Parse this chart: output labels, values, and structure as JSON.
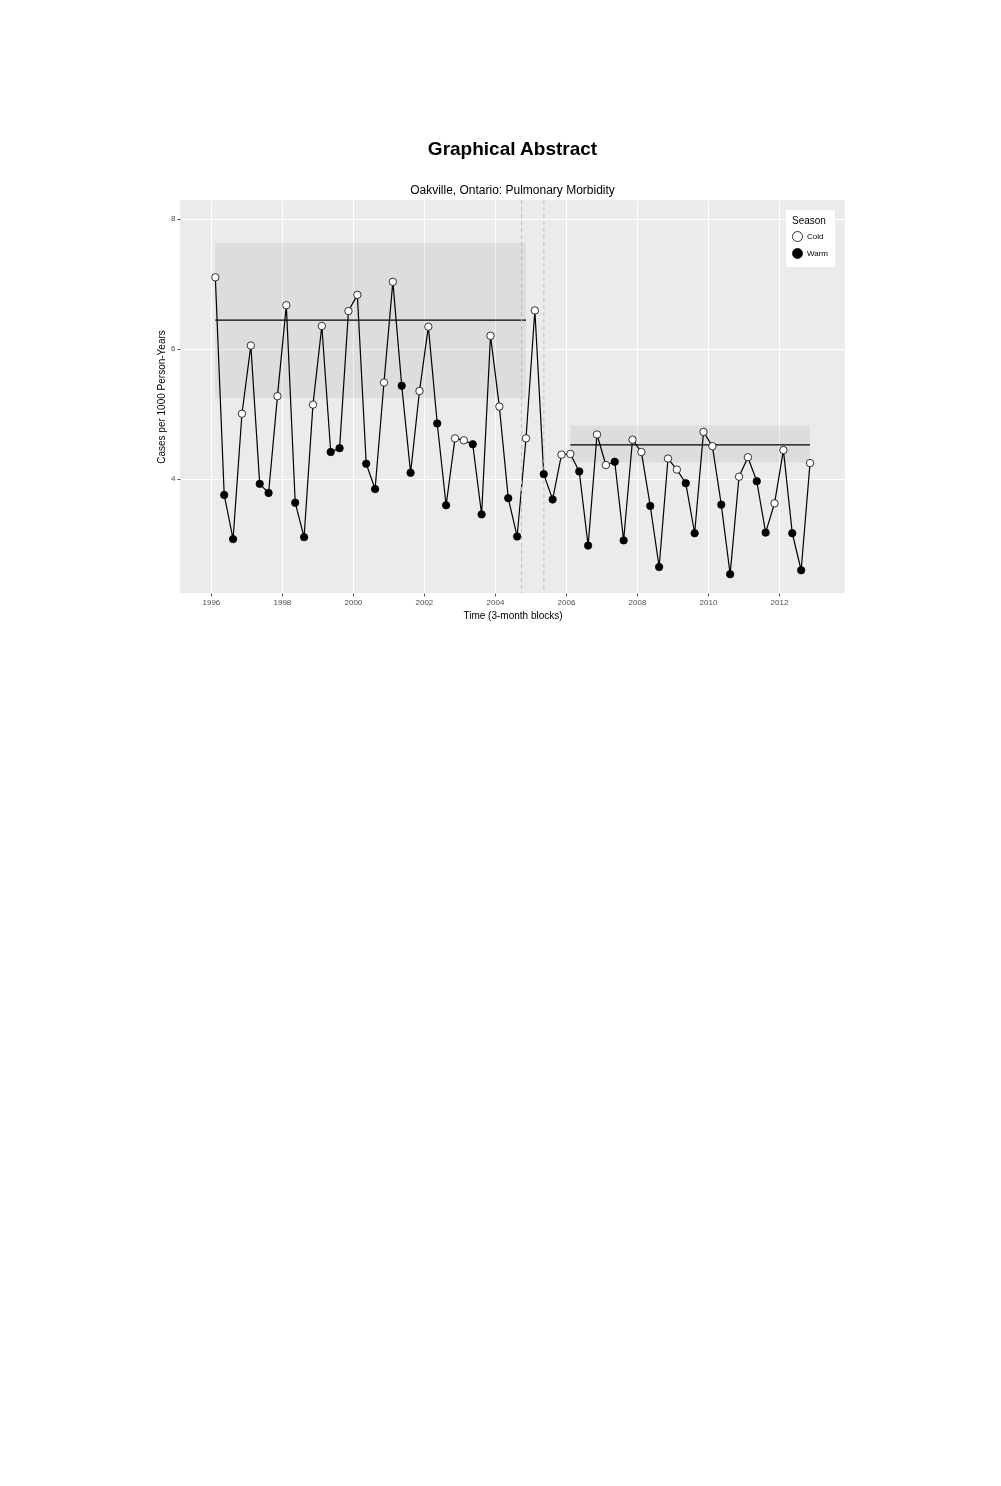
{
  "chart_data": {
    "type": "line",
    "title": "Graphical Abstract",
    "subtitle": "Oakville, Ontario: Pulmonary Morbidity",
    "xlabel": "Time (3-month blocks)",
    "ylabel": "Cases per 1000 Person-Years",
    "legend_title": "Season",
    "legend": "top right",
    "grid": true,
    "line_style": "solid",
    "xlim": [
      1995.13,
      2013.86
    ],
    "ylim": [
      2.24,
      8.29
    ],
    "xticks": [
      1996,
      1998,
      2000,
      2002,
      2004,
      2006,
      2008,
      2010,
      2012
    ],
    "yticks": [
      4,
      6,
      8
    ],
    "ref_lines": [
      {
        "axis": "x",
        "value": 2004.75,
        "color": "#bdbdbd",
        "line_style": "dashed"
      },
      {
        "axis": "x",
        "value": 2005.38,
        "color": "#bdbdbd",
        "line_style": "dashed"
      }
    ],
    "series": [
      {
        "type": "line",
        "color": "#000000",
        "marker": "none",
        "x": [
          1996.125,
          1996.375,
          1996.625,
          1996.875,
          1997.125,
          1997.375,
          1997.625,
          1997.875,
          1998.125,
          1998.375,
          1998.625,
          1998.875,
          1999.125,
          1999.375,
          1999.625,
          1999.875,
          2000.125,
          2000.375,
          2000.625,
          2000.875,
          2001.125,
          2001.375,
          2001.625,
          2001.875,
          2002.125,
          2002.375,
          2002.625,
          2002.875,
          2003.125,
          2003.375,
          2003.625,
          2003.875,
          2004.125,
          2004.375,
          2004.625,
          2004.875,
          2005.125,
          2005.375,
          2005.625,
          2005.875,
          2006.125,
          2006.375,
          2006.625,
          2006.875,
          2007.125,
          2007.375,
          2007.625,
          2007.875,
          2008.125,
          2008.375,
          2008.625,
          2008.875,
          2009.125,
          2009.375,
          2009.625,
          2009.875,
          2010.125,
          2010.375,
          2010.625,
          2010.875,
          2011.125,
          2011.375,
          2011.625,
          2011.875,
          2012.125,
          2012.375,
          2012.625,
          2012.875
        ],
        "values": [
          7.1,
          3.75,
          3.07,
          5.0,
          6.05,
          3.92,
          3.78,
          5.27,
          6.67,
          3.63,
          3.1,
          5.14,
          6.35,
          4.41,
          4.47,
          6.58,
          6.83,
          4.23,
          3.84,
          5.48,
          7.03,
          5.43,
          4.09,
          5.35,
          6.34,
          4.85,
          3.59,
          4.62,
          4.59,
          4.53,
          3.45,
          6.2,
          5.11,
          3.7,
          3.11,
          4.62,
          6.59,
          4.07,
          3.68,
          4.37,
          4.38,
          4.11,
          2.97,
          4.68,
          4.21,
          4.26,
          3.05,
          4.6,
          4.41,
          3.58,
          2.64,
          4.31,
          4.14,
          3.93,
          3.16,
          4.72,
          4.5,
          3.6,
          2.53,
          4.03,
          4.33,
          3.96,
          3.17,
          3.62,
          4.44,
          3.16,
          2.59,
          4.24
        ]
      },
      {
        "type": "line",
        "color": "#000000",
        "marker": "none",
        "x": [
          1996.125,
          2004.875
        ],
        "values": [
          6.44,
          6.44
        ],
        "lower": [
          5.24,
          5.24
        ],
        "upper": [
          7.63,
          7.63
        ]
      },
      {
        "type": "line",
        "color": "#000000",
        "marker": "none",
        "x": [
          2006.125,
          2012.875
        ],
        "values": [
          4.52,
          4.52
        ],
        "lower": [
          4.25,
          4.25
        ],
        "upper": [
          4.82,
          4.82
        ]
      },
      {
        "type": "scatter",
        "name": "Cold",
        "color": "#ffffff",
        "marker": "circle",
        "x": [
          1996.125,
          1996.875,
          1997.125,
          1997.875,
          1998.125,
          1998.875,
          1999.125,
          1999.875,
          2000.125,
          2000.875,
          2001.125,
          2001.875,
          2002.125,
          2002.875,
          2003.125,
          2003.875,
          2004.125,
          2004.875,
          2005.125,
          2005.875,
          2006.125,
          2006.875,
          2007.125,
          2007.875,
          2008.125,
          2008.875,
          2009.125,
          2009.875,
          2010.125,
          2010.875,
          2011.125,
          2011.875,
          2012.125,
          2012.875
        ],
        "values": [
          7.1,
          5.0,
          6.05,
          5.27,
          6.67,
          5.14,
          6.35,
          6.58,
          6.83,
          5.48,
          7.03,
          5.35,
          6.34,
          4.62,
          4.59,
          6.2,
          5.11,
          4.62,
          6.59,
          4.37,
          4.38,
          4.68,
          4.21,
          4.6,
          4.41,
          4.31,
          4.14,
          4.72,
          4.5,
          4.03,
          4.33,
          3.62,
          4.44,
          4.24
        ]
      },
      {
        "type": "scatter",
        "name": "Warm",
        "color": "#000000",
        "marker": "circle",
        "x": [
          1996.375,
          1996.625,
          1997.375,
          1997.625,
          1998.375,
          1998.625,
          1999.375,
          1999.625,
          2000.375,
          2000.625,
          2001.375,
          2001.625,
          2002.375,
          2002.625,
          2003.375,
          2003.625,
          2004.375,
          2004.625,
          2005.375,
          2005.625,
          2006.375,
          2006.625,
          2007.375,
          2007.625,
          2008.375,
          2008.625,
          2009.375,
          2009.625,
          2010.375,
          2010.625,
          2011.375,
          2011.625,
          2012.375,
          2012.625
        ],
        "values": [
          3.75,
          3.07,
          3.92,
          3.78,
          3.63,
          3.1,
          4.41,
          4.47,
          4.23,
          3.84,
          5.43,
          4.09,
          4.85,
          3.59,
          4.53,
          3.45,
          3.7,
          3.11,
          4.07,
          3.68,
          4.11,
          2.97,
          4.26,
          3.05,
          3.58,
          2.64,
          3.93,
          3.16,
          3.6,
          2.53,
          3.96,
          3.17,
          3.16,
          2.59
        ]
      }
    ]
  }
}
